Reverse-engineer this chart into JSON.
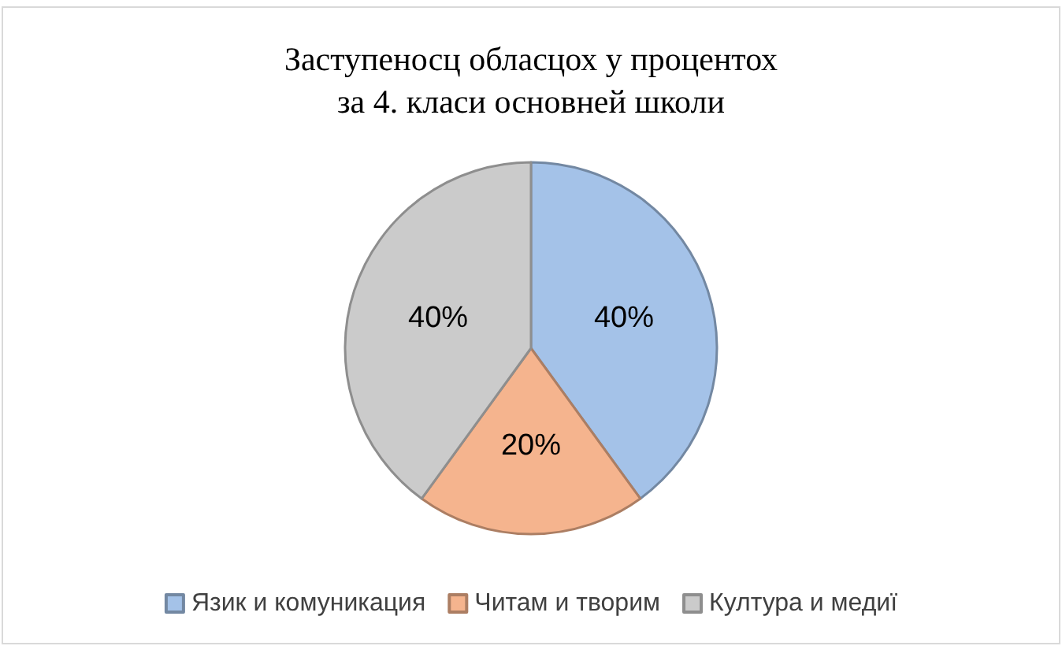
{
  "chart_data": {
    "type": "pie",
    "title": "Заступеносц обласцох у процентох\nза 4. класи основней школи",
    "categories": [
      "Язик и комуникация",
      "Читам и творим",
      "Култура и медиї"
    ],
    "values": [
      40,
      20,
      40
    ],
    "value_labels": [
      "40%",
      "20%",
      "40%"
    ],
    "colors": [
      "#a4c2e8",
      "#f5b48e",
      "#cbcbcb"
    ],
    "legend": "bottom"
  }
}
